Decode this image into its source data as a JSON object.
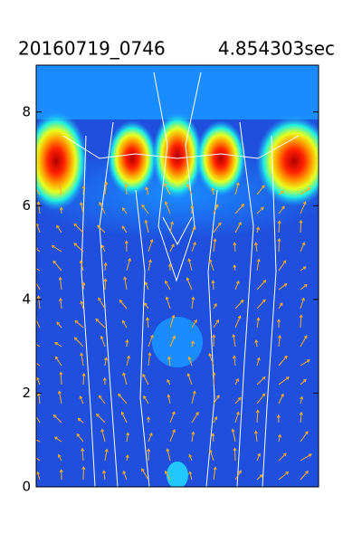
{
  "chart_data": {
    "type": "contour",
    "title_left": "20160719_0746",
    "title_right": "4.854303sec",
    "ylim": [
      0,
      9
    ],
    "yticks": [
      0,
      2,
      4,
      6,
      8
    ]
  }
}
